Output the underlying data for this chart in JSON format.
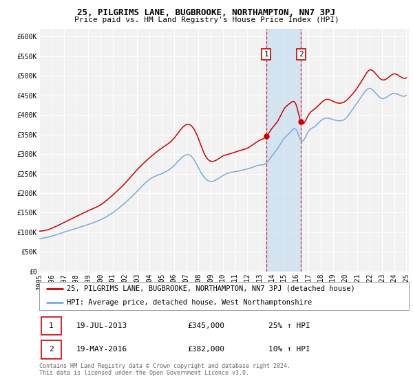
{
  "title": "25, PILGRIMS LANE, BUGBROOKE, NORTHAMPTON, NN7 3PJ",
  "subtitle": "Price paid vs. HM Land Registry's House Price Index (HPI)",
  "yticks": [
    0,
    50000,
    100000,
    150000,
    200000,
    250000,
    300000,
    350000,
    400000,
    450000,
    500000,
    550000,
    600000
  ],
  "ylim": [
    0,
    620000
  ],
  "xlim_start": 1995.0,
  "xlim_end": 2025.2,
  "background_color": "#ffffff",
  "plot_bg_color": "#f2f2f2",
  "grid_color": "#ffffff",
  "sale1": {
    "date": 2013.54,
    "price": 345000,
    "label": "1"
  },
  "sale2": {
    "date": 2016.38,
    "price": 382000,
    "label": "2"
  },
  "legend_line1": "25, PILGRIMS LANE, BUGBROOKE, NORTHAMPTON, NN7 3PJ (detached house)",
  "legend_line2": "HPI: Average price, detached house, West Northamptonshire",
  "table_row1": [
    "1",
    "19-JUL-2013",
    "£345,000",
    "25% ↑ HPI"
  ],
  "table_row2": [
    "2",
    "19-MAY-2016",
    "£382,000",
    "10% ↑ HPI"
  ],
  "footer": "Contains HM Land Registry data © Crown copyright and database right 2024.\nThis data is licensed under the Open Government Licence v3.0.",
  "red_color": "#cc0000",
  "blue_color": "#7aaadd",
  "shade_color": "#c8ddf0",
  "title_fontsize": 9,
  "subtitle_fontsize": 8,
  "tick_fontsize": 7,
  "legend_fontsize": 7.5,
  "table_fontsize": 8,
  "footer_fontsize": 6,
  "prop_data": {
    "years": [
      1995,
      1996,
      1997,
      1998,
      1999,
      2000,
      2001,
      2002,
      2003,
      2004,
      2005,
      2006,
      2007,
      2007.5,
      2008,
      2008.5,
      2009,
      2009.5,
      2010,
      2010.5,
      2011,
      2011.5,
      2012,
      2012.5,
      2013,
      2013.54,
      2014,
      2014.5,
      2015,
      2015.5,
      2016,
      2016.38,
      2017,
      2017.5,
      2018,
      2018.5,
      2019,
      2019.5,
      2020,
      2020.5,
      2021,
      2021.5,
      2022,
      2022.5,
      2023,
      2023.5,
      2024,
      2024.5,
      2025
    ],
    "values": [
      103000,
      110000,
      125000,
      140000,
      155000,
      170000,
      195000,
      225000,
      260000,
      290000,
      315000,
      340000,
      375000,
      370000,
      340000,
      300000,
      282000,
      285000,
      295000,
      300000,
      305000,
      310000,
      315000,
      325000,
      335000,
      345000,
      365000,
      385000,
      415000,
      430000,
      425000,
      382000,
      400000,
      415000,
      430000,
      440000,
      435000,
      430000,
      435000,
      450000,
      470000,
      495000,
      515000,
      505000,
      490000,
      495000,
      505000,
      498000,
      495000
    ]
  },
  "hpi_data": {
    "years": [
      1995,
      1996,
      1997,
      1998,
      1999,
      2000,
      2001,
      2002,
      2003,
      2004,
      2005,
      2006,
      2007,
      2007.5,
      2008,
      2008.5,
      2009,
      2009.5,
      2010,
      2010.5,
      2011,
      2011.5,
      2012,
      2012.5,
      2013,
      2013.54,
      2014,
      2014.5,
      2015,
      2015.5,
      2016,
      2016.38,
      2017,
      2017.5,
      2018,
      2018.5,
      2019,
      2019.5,
      2020,
      2020.5,
      2021,
      2021.5,
      2022,
      2022.5,
      2023,
      2023.5,
      2024,
      2024.5,
      2025
    ],
    "values": [
      84000,
      90000,
      100000,
      110000,
      120000,
      132000,
      150000,
      175000,
      205000,
      235000,
      250000,
      270000,
      298000,
      292000,
      265000,
      240000,
      230000,
      235000,
      245000,
      252000,
      255000,
      258000,
      262000,
      267000,
      272000,
      276000,
      295000,
      315000,
      340000,
      355000,
      362000,
      335000,
      358000,
      370000,
      385000,
      392000,
      388000,
      385000,
      390000,
      410000,
      432000,
      455000,
      468000,
      455000,
      442000,
      448000,
      455000,
      450000,
      450000
    ]
  }
}
